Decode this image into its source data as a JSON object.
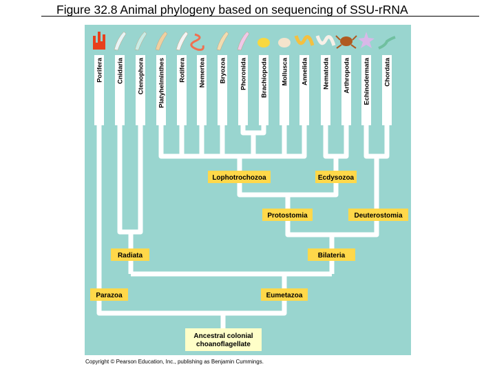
{
  "title": "Figure 32.8  Animal phylogeny based on sequencing of SSU-rRNA",
  "copyright": "Copyright © Pearson Education, Inc., publishing as Benjamin Cummings.",
  "colors": {
    "background": "#99d5cf",
    "branch": "#ffffff",
    "clade_label": "#ffd84a",
    "root_label": "#ffffc8"
  },
  "taxa": [
    {
      "name": "Porifera",
      "icon": "sponge-icon",
      "color": "#e8401c"
    },
    {
      "name": "Cnidaria",
      "icon": "jellyfish-icon",
      "color": "#e8f4f6"
    },
    {
      "name": "Ctenophora",
      "icon": "comb-jelly-icon",
      "color": "#c8ece6"
    },
    {
      "name": "Platyhelminthes",
      "icon": "flatworm-icon",
      "color": "#f0d0a0"
    },
    {
      "name": "Rotifera",
      "icon": "rotifer-icon",
      "color": "#f4f4f4"
    },
    {
      "name": "Nemertea",
      "icon": "ribbon-worm-icon",
      "color": "#f07050"
    },
    {
      "name": "Bryozoa",
      "icon": "bryozoan-icon",
      "color": "#f2dcb0"
    },
    {
      "name": "Phoronida",
      "icon": "phoronid-icon",
      "color": "#f0c8e8"
    },
    {
      "name": "Brachiopoda",
      "icon": "brachiopod-icon",
      "color": "#f8d840"
    },
    {
      "name": "Mollusca",
      "icon": "shell-icon",
      "color": "#f4e4cc"
    },
    {
      "name": "Annelida",
      "icon": "earthworm-icon",
      "color": "#f4c040"
    },
    {
      "name": "Nematoda",
      "icon": "roundworm-icon",
      "color": "#f8f0e8"
    },
    {
      "name": "Arthropoda",
      "icon": "crab-icon",
      "color": "#b05a20"
    },
    {
      "name": "Echinodermata",
      "icon": "starfish-icon",
      "color": "#d8b8e8"
    },
    {
      "name": "Chordata",
      "icon": "lancelet-icon",
      "color": "#70c0a0"
    }
  ],
  "clades": {
    "lophotrochozoa": "Lophotrochozoa",
    "ecdysozoa": "Ecdysozoa",
    "protostomia": "Protostomia",
    "deuterostomia": "Deuterostomia",
    "radiata": "Radiata",
    "bilateria": "Bilateria",
    "parazoa": "Parazoa",
    "eumetazoa": "Eumetazoa",
    "root_line1": "Ancestral colonial",
    "root_line2": "choanoflagellate"
  }
}
